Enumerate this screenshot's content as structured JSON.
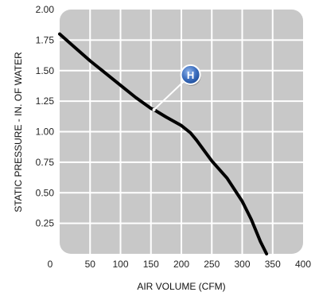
{
  "chart_data": {
    "type": "line",
    "xlabel": "AIR VOLUME (CFM)",
    "ylabel": "STATIC PRESSURE - IN. OF WATER",
    "xlim": [
      0,
      400
    ],
    "ylim": [
      0,
      2.0
    ],
    "x_ticks": [
      "0",
      "50",
      "100",
      "150",
      "200",
      "250",
      "300",
      "350",
      "400"
    ],
    "y_ticks": [
      "0.25",
      "0.50",
      "0.75",
      "1.00",
      "1.25",
      "1.50",
      "1.75",
      "2.00"
    ],
    "grid": true,
    "series": [
      {
        "x": [
          0,
          25,
          50,
          75,
          100,
          125,
          150,
          155,
          175,
          200,
          215,
          225,
          250,
          275,
          300,
          315,
          330,
          340
        ],
        "y": [
          1.8,
          1.69,
          1.58,
          1.48,
          1.38,
          1.28,
          1.19,
          1.18,
          1.12,
          1.05,
          0.99,
          0.93,
          0.76,
          0.62,
          0.43,
          0.28,
          0.1,
          0.0
        ]
      }
    ],
    "annotations": [
      {
        "label": "H",
        "x": 155,
        "y": 1.18
      }
    ],
    "colors": {
      "plot_bg": "#c8c8c8",
      "grid": "#ffffff",
      "line": "#000000",
      "marker": "#3d6fbf"
    }
  }
}
